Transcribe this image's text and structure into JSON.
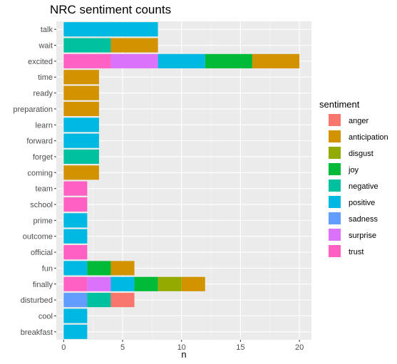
{
  "chart_data": {
    "type": "bar",
    "orientation": "horizontal",
    "stacked": true,
    "title": "NRC sentiment counts",
    "xlabel": "n",
    "ylabel": "",
    "xlim": [
      0,
      20.5
    ],
    "xticks": [
      0,
      5,
      10,
      15,
      20
    ],
    "grid": true,
    "legend": {
      "title": "sentiment",
      "position": "right"
    },
    "categories": [
      "talk",
      "wait",
      "excited",
      "time",
      "ready",
      "preparation",
      "learn",
      "forward",
      "forget",
      "coming",
      "team",
      "school",
      "prime",
      "outcome",
      "official",
      "fun",
      "finally",
      "disturbed",
      "cool",
      "breakfast"
    ],
    "series": [
      {
        "name": "trust",
        "color": "#FF61C3",
        "values": [
          0,
          0,
          4,
          0,
          0,
          0,
          0,
          0,
          0,
          0,
          2,
          2,
          0,
          0,
          2,
          0,
          2,
          0,
          0,
          0
        ]
      },
      {
        "name": "surprise",
        "color": "#DB72FB",
        "values": [
          0,
          0,
          4,
          0,
          0,
          0,
          0,
          0,
          0,
          0,
          0,
          0,
          0,
          0,
          0,
          0,
          2,
          0,
          0,
          0
        ]
      },
      {
        "name": "sadness",
        "color": "#619CFF",
        "values": [
          0,
          0,
          0,
          0,
          0,
          0,
          0,
          0,
          0,
          0,
          0,
          0,
          0,
          0,
          0,
          0,
          0,
          2,
          0,
          0
        ]
      },
      {
        "name": "positive",
        "color": "#00B9E3",
        "values": [
          8,
          0,
          4,
          0,
          0,
          0,
          3,
          3,
          0,
          0,
          0,
          0,
          2,
          2,
          0,
          2,
          2,
          0,
          2,
          2
        ]
      },
      {
        "name": "negative",
        "color": "#00C19F",
        "values": [
          0,
          4,
          0,
          0,
          0,
          0,
          0,
          0,
          3,
          0,
          0,
          0,
          0,
          0,
          0,
          0,
          0,
          2,
          0,
          0
        ]
      },
      {
        "name": "joy",
        "color": "#00BA38",
        "values": [
          0,
          0,
          4,
          0,
          0,
          0,
          0,
          0,
          0,
          0,
          0,
          0,
          0,
          0,
          0,
          2,
          2,
          0,
          0,
          0
        ]
      },
      {
        "name": "disgust",
        "color": "#93AA00",
        "values": [
          0,
          0,
          0,
          0,
          0,
          0,
          0,
          0,
          0,
          0,
          0,
          0,
          0,
          0,
          0,
          0,
          2,
          0,
          0,
          0
        ]
      },
      {
        "name": "anticipation",
        "color": "#D39200",
        "values": [
          0,
          4,
          4,
          3,
          3,
          3,
          0,
          0,
          0,
          3,
          0,
          0,
          0,
          0,
          0,
          2,
          2,
          0,
          0,
          0
        ]
      },
      {
        "name": "anger",
        "color": "#F8766D",
        "values": [
          0,
          0,
          0,
          0,
          0,
          0,
          0,
          0,
          0,
          0,
          0,
          0,
          0,
          0,
          0,
          0,
          0,
          2,
          0,
          0
        ]
      }
    ],
    "legend_order": [
      "anger",
      "anticipation",
      "disgust",
      "joy",
      "negative",
      "positive",
      "sadness",
      "surprise",
      "trust"
    ]
  }
}
